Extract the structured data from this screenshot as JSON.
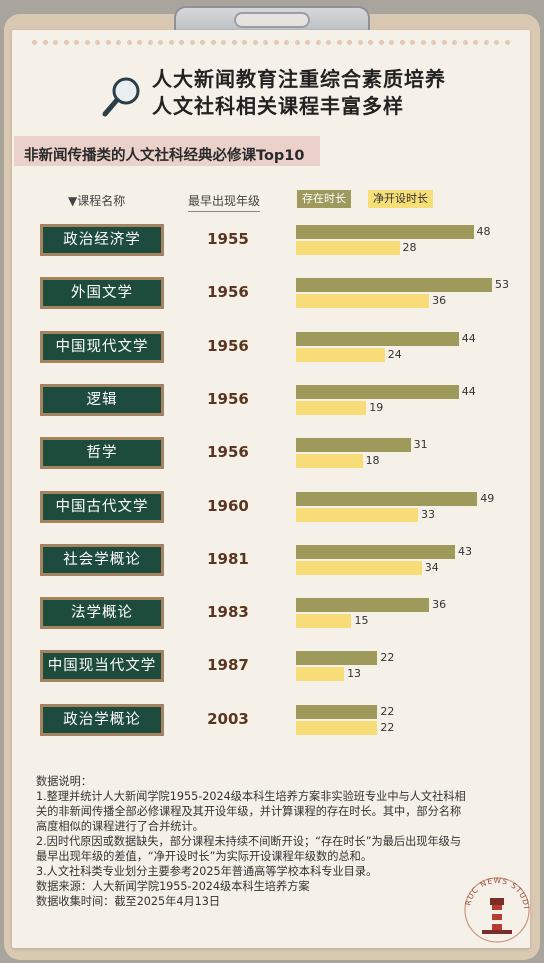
{
  "title": "人大新闻教育注重综合素质培养\n人文社科相关课程丰富多样",
  "subtitle": "非新闻传播类的人文社科经典必修课Top10",
  "headers": {
    "course": "▼课程名称",
    "year": "最早出现年级",
    "legend_a": "存在时长",
    "legend_b": "净开设时长"
  },
  "colors": {
    "exist": "#9d9a5c",
    "net": "#f8dc78",
    "board": "#1e4c3c"
  },
  "chart_data": {
    "type": "bar",
    "orientation": "horizontal",
    "title": "非新闻传播类的人文社科经典必修课Top10",
    "categories": [
      "政治经济学",
      "外国文学",
      "中国现代文学",
      "逻辑",
      "哲学",
      "中国古代文学",
      "社会学概论",
      "法学概论",
      "中国现当代文学",
      "政治学概论"
    ],
    "first_year": [
      "1955",
      "1956",
      "1956",
      "1956",
      "1956",
      "1960",
      "1981",
      "1983",
      "1987",
      "2003"
    ],
    "series": [
      {
        "name": "存在时长",
        "values": [
          48,
          53,
          44,
          44,
          31,
          49,
          43,
          36,
          22,
          22
        ]
      },
      {
        "name": "净开设时长",
        "values": [
          28,
          36,
          24,
          19,
          18,
          33,
          34,
          15,
          13,
          22
        ]
      }
    ],
    "xlim": [
      0,
      53
    ],
    "legend": "top"
  },
  "notes": [
    "数据说明：",
    "1.整理并统计人大新闻学院1955-2024级本科生培养方案非实验班专业中与人文社科相关的非新闻传播全部必修课程及其开设年级，并计算课程的存在时长。其中，部分名称高度相似的课程进行了合并统计。",
    "2.因时代原因或数据缺失，部分课程未持续不间断开设；“存在时长”为最后出现年级与最早出现年级的差值，“净开设时长”为实际开设课程年级数的总和。",
    "3.人文社科类专业划分主要参考2025年普通高等学校本科专业目录。",
    "数据来源：人大新闻学院1955-2024级本科生培养方案",
    "数据收集时间：截至2025年4月13日"
  ],
  "stamp_text": "RUC NEWS STUDIO",
  "icons": {
    "title": "magnifier-icon",
    "stamp": "lighthouse-stamp-icon"
  }
}
